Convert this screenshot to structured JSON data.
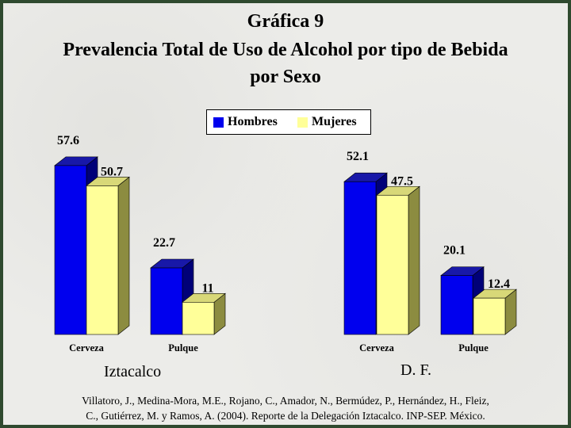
{
  "title_line1": "Gráfica 9",
  "title_line2": "Prevalencia Total de Uso de Alcohol por tipo de Bebida",
  "title_line3": "por Sexo",
  "legend": {
    "hombres": "Hombres",
    "mujeres": "Mujeres"
  },
  "colors": {
    "hombres": "#0000ee",
    "mujeres": "#ffff99"
  },
  "chart_data": {
    "type": "bar",
    "groups": [
      {
        "name": "Iztacalco",
        "categories": [
          "Cerveza",
          "Pulque"
        ],
        "series": [
          {
            "name": "Hombres",
            "values": [
              57.6,
              22.7
            ]
          },
          {
            "name": "Mujeres",
            "values": [
              50.7,
              11
            ]
          }
        ]
      },
      {
        "name": "D. F.",
        "categories": [
          "Cerveza",
          "Pulque"
        ],
        "series": [
          {
            "name": "Hombres",
            "values": [
              52.1,
              20.1
            ]
          },
          {
            "name": "Mujeres",
            "values": [
              47.5,
              12.4
            ]
          }
        ]
      }
    ],
    "legend_position": "top-center",
    "grid": false
  },
  "citation_line1": "Villatoro, J., Medina-Mora, M.E., Rojano, C., Amador, N., Bermúdez, P., Hernández, H., Fleiz,",
  "citation_line2": "C., Gutiérrez, M. y Ramos, A. (2004). Reporte de la Delegación Iztacalco. INP-SEP. México."
}
